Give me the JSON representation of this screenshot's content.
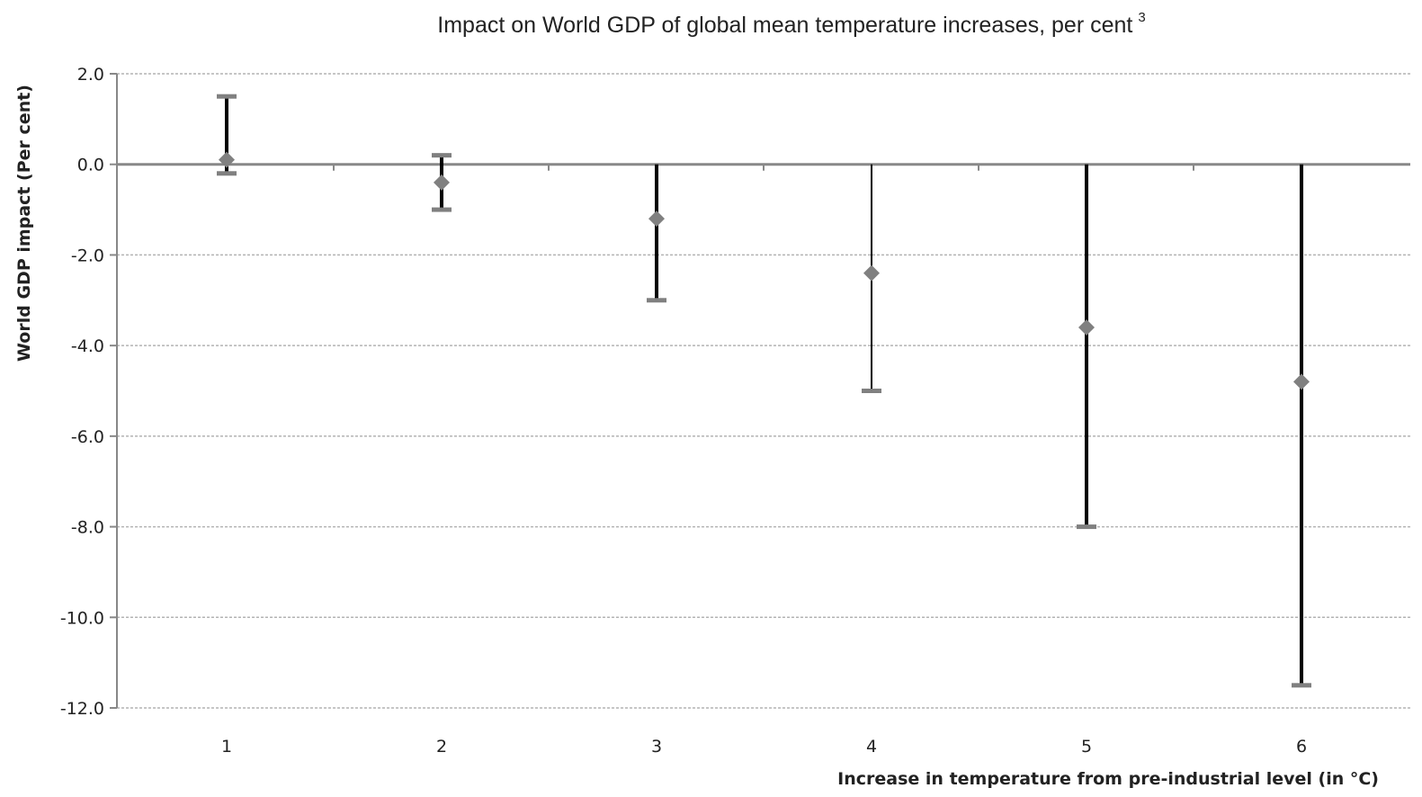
{
  "chart_data": {
    "type": "scatter",
    "title": "Impact on World GDP of global mean temperature increases, per cent",
    "title_superscript": "3",
    "xlabel": "Increase in temperature from pre-industrial level (in °C)",
    "ylabel": "World GDP impact (Per cent)",
    "x": [
      1,
      2,
      3,
      4,
      5,
      6
    ],
    "x_tick_labels": [
      "1",
      "2",
      "3",
      "4",
      "5",
      "6"
    ],
    "ylim": [
      -12.0,
      2.0
    ],
    "y_ticks": [
      2.0,
      0.0,
      -2.0,
      -4.0,
      -6.0,
      -8.0,
      -10.0,
      -12.0
    ],
    "y_tick_labels": [
      "2.0",
      "0.0",
      "-2.0",
      "-4.0",
      "-6.0",
      "-8.0",
      "-10.0",
      "-12.0"
    ],
    "grid": true,
    "series": [
      {
        "values": [
          0.1,
          -0.4,
          -1.2,
          -2.4,
          -3.6,
          -4.8
        ],
        "error_low": [
          -0.2,
          -1.0,
          -3.0,
          -5.0,
          -8.0,
          -11.5
        ],
        "error_high": [
          1.5,
          0.2,
          0.0,
          0.0,
          0.0,
          0.0
        ],
        "marker": "diamond"
      }
    ],
    "colors": {
      "marker": "#808080",
      "error_bar": "#000000",
      "cap": "#808080",
      "grid": "#b3b3b3",
      "axis": "#888888"
    }
  }
}
